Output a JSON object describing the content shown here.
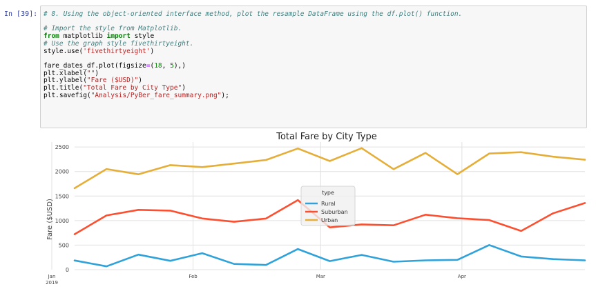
{
  "prompt_label": "In [39]:",
  "code": {
    "comment1": "# 8. Using the object-oriented interface method, plot the resample DataFrame using the df.plot() function.",
    "comment2": "# Import the style from Matplotlib.",
    "import_from": "from",
    "import_module": " matplotlib ",
    "import_kw": "import",
    "import_name": " style",
    "comment3": "# Use the graph style fivethirtyeight.",
    "style_call_pre": "style.use(",
    "style_call_str": "'fivethirtyeight'",
    "style_call_post": ")",
    "plot_pre": "fare_dates_df.plot(figsize",
    "plot_eq": "=",
    "plot_args": "(",
    "plot_n1": "18",
    "plot_mid": ", ",
    "plot_n2": "5",
    "plot_post": "),)",
    "xlabel_pre": "plt.xlabel(",
    "xlabel_str": "\"\"",
    "xlabel_post": ")",
    "ylabel_pre": "plt.ylabel(",
    "ylabel_str": "\"Fare ($USD)\"",
    "ylabel_post": ")",
    "title_pre": "plt.title(",
    "title_str": "\"Total Fare by City Type\"",
    "title_post": ")",
    "savefig_pre": "plt.savefig(",
    "savefig_str": "\"Analysis/PyBer_fare_summary.png\"",
    "savefig_post": ");"
  },
  "chart_data": {
    "type": "line",
    "title": "Total Fare by City Type",
    "xlabel": "",
    "ylabel": "Fare ($USD)",
    "ylim": [
      0,
      2600
    ],
    "yticks": [
      0,
      500,
      1000,
      1500,
      2000,
      2500
    ],
    "x": [
      "2019-01-06",
      "2019-01-13",
      "2019-01-20",
      "2019-01-27",
      "2019-02-03",
      "2019-02-10",
      "2019-02-17",
      "2019-02-24",
      "2019-03-03",
      "2019-03-10",
      "2019-03-17",
      "2019-03-24",
      "2019-03-31",
      "2019-04-07",
      "2019-04-14",
      "2019-04-21",
      "2019-04-28"
    ],
    "xticks": [
      {
        "major": "Jan",
        "minor": "2019",
        "x": "2019-01-01"
      },
      {
        "major": "Feb",
        "minor": "",
        "x": "2019-02-01"
      },
      {
        "major": "Mar",
        "minor": "",
        "x": "2019-03-01"
      },
      {
        "major": "Apr",
        "minor": "",
        "x": "2019-04-01"
      }
    ],
    "grid": true,
    "legend_title": "type",
    "legend_position": "center",
    "series": [
      {
        "name": "Rural",
        "color": "#30a2da",
        "values": [
          187,
          67,
          307,
          180,
          336,
          116,
          95,
          420,
          174,
          301,
          162,
          190,
          200,
          502,
          269,
          215,
          190
        ]
      },
      {
        "name": "Suburban",
        "color": "#fc4f30",
        "values": [
          722,
          1105,
          1219,
          1203,
          1043,
          975,
          1042,
          1418,
          862,
          922,
          903,
          1120,
          1048,
          1010,
          789,
          1148,
          1357
        ]
      },
      {
        "name": "Urban",
        "color": "#e5ae38",
        "values": [
          1660,
          2050,
          1943,
          2130,
          2090,
          2162,
          2235,
          2470,
          2214,
          2476,
          2047,
          2380,
          1945,
          2367,
          2394,
          2302,
          2240
        ]
      }
    ]
  }
}
